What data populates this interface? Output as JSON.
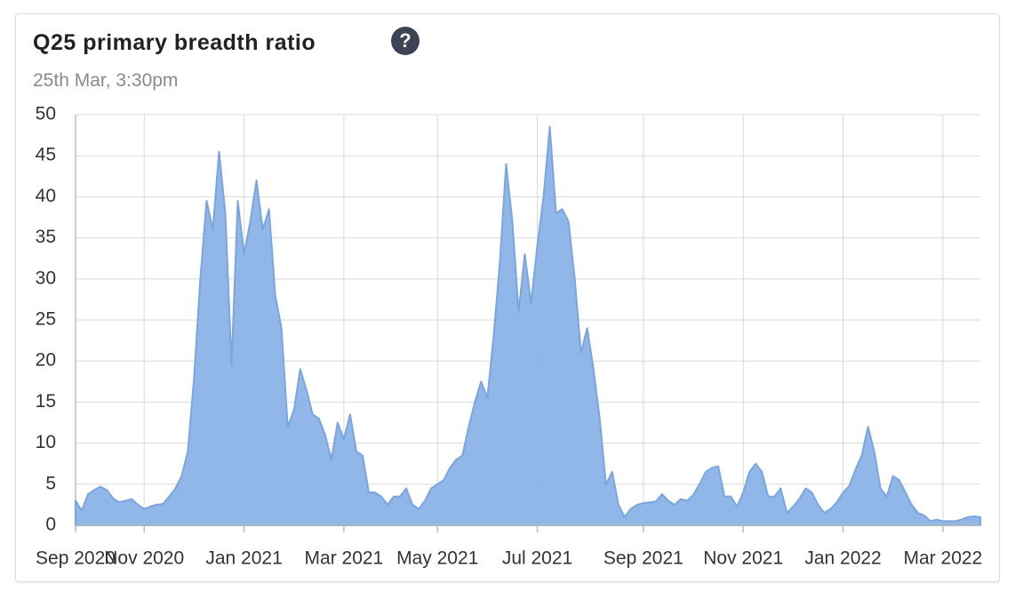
{
  "chart_data": {
    "type": "area",
    "title": "Q25 primary breadth ratio",
    "info_icon": "?",
    "subtitle": "25th Mar, 3:30pm",
    "color": "#8ab3e6",
    "line_color": "#7aa5df",
    "grid": true,
    "ylim": [
      0,
      50
    ],
    "yticks": [
      0,
      5,
      10,
      15,
      20,
      25,
      30,
      35,
      40,
      45,
      50
    ],
    "categories": [
      "Sep 2020",
      null,
      null,
      null,
      null,
      null,
      null,
      null,
      null,
      null,
      null,
      "Nov 2020",
      null,
      null,
      null,
      null,
      null,
      null,
      null,
      null,
      null,
      null,
      null,
      null,
      null,
      null,
      null,
      "Jan 2021",
      null,
      null,
      null,
      null,
      null,
      null,
      null,
      null,
      null,
      null,
      null,
      null,
      null,
      null,
      null,
      "Mar 2021",
      null,
      null,
      null,
      null,
      null,
      null,
      null,
      null,
      null,
      null,
      null,
      null,
      null,
      null,
      "May 2021",
      null,
      null,
      null,
      null,
      null,
      null,
      null,
      null,
      null,
      null,
      null,
      null,
      null,
      null,
      null,
      "Jul 2021",
      null,
      null,
      null,
      null,
      null,
      null,
      null,
      null,
      null,
      null,
      null,
      null,
      null,
      null,
      null,
      null,
      "Sep 2021",
      null,
      null,
      null,
      null,
      null,
      null,
      null,
      null,
      null,
      null,
      null,
      null,
      null,
      null,
      null,
      "Nov 2021",
      null,
      null,
      null,
      null,
      null,
      null,
      null,
      null,
      null,
      null,
      null,
      null,
      null,
      null,
      null,
      "Jan 2022",
      null,
      null,
      null,
      null,
      null,
      null,
      null,
      null,
      null,
      null,
      null,
      null,
      null,
      null,
      null,
      "Mar 2022",
      null,
      null,
      null,
      null,
      null,
      null
    ],
    "values": [
      3,
      1.8,
      3.8,
      4.3,
      4.7,
      4.3,
      3.3,
      2.8,
      3,
      3.2,
      2.5,
      2,
      2.3,
      2.5,
      2.6,
      3.5,
      4.5,
      6,
      9,
      18,
      30,
      39.5,
      36,
      45.5,
      38,
      19.5,
      39.5,
      33,
      37,
      42,
      36,
      38.5,
      28,
      24,
      12,
      14,
      19,
      16.5,
      13.5,
      13,
      11,
      8,
      12.5,
      10.5,
      13.5,
      9,
      8.5,
      4,
      4,
      3.5,
      2.5,
      3.5,
      3.5,
      4.5,
      2.5,
      2,
      3,
      4.5,
      5,
      5.5,
      7,
      8,
      8.5,
      12,
      15,
      17.5,
      15.5,
      23,
      32,
      44,
      37,
      26,
      33,
      27,
      34,
      40,
      48.5,
      38,
      38.5,
      37,
      30,
      21,
      24,
      19,
      13,
      5,
      6.5,
      2.5,
      1,
      2,
      2.5,
      2.7,
      2.8,
      2.9,
      3.8,
      3,
      2.5,
      3.2,
      3,
      3.7,
      5,
      6.5,
      7,
      7.2,
      3.5,
      3.5,
      2.3,
      4,
      6.5,
      7.5,
      6.5,
      3.5,
      3.5,
      4.5,
      1.5,
      2.3,
      3.2,
      4.5,
      4,
      2.5,
      1.5,
      2,
      2.8,
      4,
      4.8,
      6.8,
      8.5,
      12,
      9,
      4.5,
      3.5,
      6,
      5.5,
      4,
      2.5,
      1.5,
      1.2,
      0.5,
      0.7,
      0.5,
      0.5,
      0.5,
      0.7,
      1,
      1.1,
      1
    ]
  }
}
